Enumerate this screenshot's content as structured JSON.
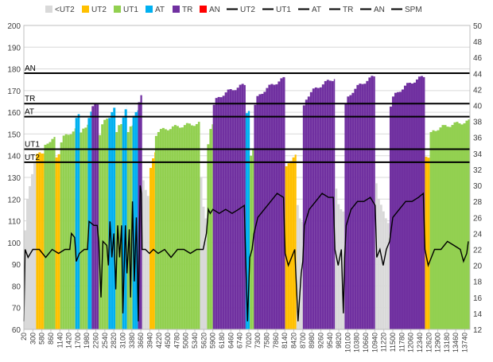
{
  "chart_data": {
    "type": "bar",
    "title": "",
    "xlabel": "",
    "ylabel": "",
    "y2label": "",
    "ylim": [
      60,
      200
    ],
    "y2lim": [
      12,
      50
    ],
    "grid": true,
    "legend_position": "top",
    "legend": [
      {
        "name": "<UT2",
        "kind": "bar",
        "color": "#d9d9d9"
      },
      {
        "name": "UT2",
        "kind": "bar",
        "color": "#ffc000"
      },
      {
        "name": "UT1",
        "kind": "bar",
        "color": "#92d050"
      },
      {
        "name": "AT",
        "kind": "bar",
        "color": "#00b0f0"
      },
      {
        "name": "TR",
        "kind": "bar",
        "color": "#7030a0"
      },
      {
        "name": "AN",
        "kind": "bar",
        "color": "#ff0000"
      },
      {
        "name": "UT2",
        "kind": "line",
        "color": "#000000"
      },
      {
        "name": "UT1",
        "kind": "line",
        "color": "#000000"
      },
      {
        "name": "AT",
        "kind": "line",
        "color": "#000000"
      },
      {
        "name": "TR",
        "kind": "line",
        "color": "#000000"
      },
      {
        "name": "AN",
        "kind": "line",
        "color": "#000000"
      },
      {
        "name": "SPM",
        "kind": "line",
        "color": "#000000"
      }
    ],
    "left_ticks": [
      60,
      70,
      80,
      90,
      100,
      110,
      120,
      130,
      140,
      150,
      160,
      170,
      180,
      190,
      200
    ],
    "right_ticks": [
      12,
      14,
      16,
      18,
      20,
      22,
      24,
      26,
      28,
      30,
      32,
      34,
      36,
      38,
      40,
      42,
      44,
      46,
      48,
      50
    ],
    "x_ticks": [
      "20",
      "300",
      "580",
      "860",
      "1140",
      "1420",
      "1700",
      "1980",
      "2260",
      "2540",
      "2820",
      "3100",
      "3380",
      "3660",
      "3940",
      "4220",
      "4500",
      "4780",
      "5060",
      "5340",
      "5620",
      "5900",
      "6180",
      "6460",
      "6740",
      "7020",
      "7300",
      "7580",
      "7860",
      "8140",
      "8420",
      "8700",
      "8980",
      "9260",
      "9540",
      "9820",
      "10100",
      "10380",
      "10660",
      "10940",
      "11220",
      "11500",
      "11780",
      "12060",
      "12340",
      "12620",
      "12900",
      "13180",
      "13460",
      "13740"
    ],
    "x_range": [
      20,
      13900
    ],
    "zone_lines": [
      {
        "name": "AN",
        "value": 178
      },
      {
        "name": "TR",
        "value": 164
      },
      {
        "name": "AT",
        "value": 158
      },
      {
        "name": "UT1",
        "value": 143
      },
      {
        "name": "UT2",
        "value": 137
      }
    ],
    "hr_segments": [
      {
        "x0": 20,
        "x1": 400,
        "zone": "<UT2",
        "y0": 105,
        "y1": 140
      },
      {
        "x0": 400,
        "x1": 650,
        "zone": "UT2",
        "y0": 140,
        "y1": 142
      },
      {
        "x0": 650,
        "x1": 1000,
        "zone": "UT1",
        "y0": 145,
        "y1": 148
      },
      {
        "x0": 1000,
        "x1": 1150,
        "zone": "UT2",
        "y0": 140,
        "y1": 142
      },
      {
        "x0": 1150,
        "x1": 1620,
        "zone": "UT1",
        "y0": 146,
        "y1": 152
      },
      {
        "x0": 1620,
        "x1": 1760,
        "zone": "AT",
        "y0": 158,
        "y1": 159
      },
      {
        "x0": 1760,
        "x1": 2010,
        "zone": "UT1",
        "y0": 150,
        "y1": 155
      },
      {
        "x0": 2010,
        "x1": 2130,
        "zone": "AT",
        "y0": 158,
        "y1": 162
      },
      {
        "x0": 2130,
        "x1": 2350,
        "zone": "TR",
        "y0": 162,
        "y1": 165
      },
      {
        "x0": 2350,
        "x1": 2650,
        "zone": "UT1",
        "y0": 150,
        "y1": 158
      },
      {
        "x0": 2650,
        "x1": 2870,
        "zone": "AT",
        "y0": 158,
        "y1": 163
      },
      {
        "x0": 2870,
        "x1": 3080,
        "zone": "UT1",
        "y0": 150,
        "y1": 156
      },
      {
        "x0": 3080,
        "x1": 3230,
        "zone": "AT",
        "y0": 158,
        "y1": 162
      },
      {
        "x0": 3230,
        "x1": 3400,
        "zone": "UT1",
        "y0": 150,
        "y1": 155
      },
      {
        "x0": 3400,
        "x1": 3570,
        "zone": "AT",
        "y0": 158,
        "y1": 162
      },
      {
        "x0": 3570,
        "x1": 3700,
        "zone": "TR",
        "y0": 165,
        "y1": 170
      },
      {
        "x0": 3700,
        "x1": 3930,
        "zone": "<UT2",
        "y0": 128,
        "y1": 120
      },
      {
        "x0": 3930,
        "x1": 4100,
        "zone": "UT2",
        "y0": 135,
        "y1": 142
      },
      {
        "x0": 4100,
        "x1": 5500,
        "zone": "UT1",
        "y0": 150,
        "y1": 155
      },
      {
        "x0": 5500,
        "x1": 5720,
        "zone": "<UT2",
        "y0": 130,
        "y1": 108
      },
      {
        "x0": 5720,
        "x1": 5900,
        "zone": "UT1",
        "y0": 145,
        "y1": 155
      },
      {
        "x0": 5900,
        "x1": 6920,
        "zone": "TR",
        "y0": 163,
        "y1": 173
      },
      {
        "x0": 6920,
        "x1": 7050,
        "zone": "AT",
        "y0": 160,
        "y1": 160
      },
      {
        "x0": 7050,
        "x1": 7180,
        "zone": "UT1",
        "y0": 140,
        "y1": 145
      },
      {
        "x0": 7180,
        "x1": 8150,
        "zone": "TR",
        "y0": 163,
        "y1": 176
      },
      {
        "x0": 8150,
        "x1": 8500,
        "zone": "UT2",
        "y0": 135,
        "y1": 140
      },
      {
        "x0": 8500,
        "x1": 8700,
        "zone": "<UT2",
        "y0": 118,
        "y1": 108
      },
      {
        "x0": 8700,
        "x1": 9700,
        "zone": "TR",
        "y0": 163,
        "y1": 176
      },
      {
        "x0": 9700,
        "x1": 10000,
        "zone": "<UT2",
        "y0": 125,
        "y1": 112
      },
      {
        "x0": 10000,
        "x1": 10950,
        "zone": "TR",
        "y0": 163,
        "y1": 177
      },
      {
        "x0": 10950,
        "x1": 11400,
        "zone": "<UT2",
        "y0": 128,
        "y1": 108
      },
      {
        "x0": 11400,
        "x1": 12500,
        "zone": "TR",
        "y0": 163,
        "y1": 177
      },
      {
        "x0": 12500,
        "x1": 12650,
        "zone": "UT2",
        "y0": 140,
        "y1": 138
      },
      {
        "x0": 12650,
        "x1": 13900,
        "zone": "UT1",
        "y0": 150,
        "y1": 156
      }
    ],
    "spm_series": [
      [
        20,
        13
      ],
      [
        60,
        22
      ],
      [
        150,
        21
      ],
      [
        300,
        22
      ],
      [
        500,
        22
      ],
      [
        700,
        21
      ],
      [
        900,
        22
      ],
      [
        1100,
        21.5
      ],
      [
        1300,
        22
      ],
      [
        1450,
        22
      ],
      [
        1500,
        24
      ],
      [
        1600,
        23.5
      ],
      [
        1650,
        20.5
      ],
      [
        1750,
        21.5
      ],
      [
        1900,
        22
      ],
      [
        2000,
        22
      ],
      [
        2050,
        25.5
      ],
      [
        2200,
        25
      ],
      [
        2300,
        25
      ],
      [
        2350,
        23
      ],
      [
        2420,
        16
      ],
      [
        2480,
        23
      ],
      [
        2600,
        22.5
      ],
      [
        2650,
        20
      ],
      [
        2700,
        25.5
      ],
      [
        2760,
        21
      ],
      [
        2820,
        24
      ],
      [
        2880,
        17
      ],
      [
        2940,
        25
      ],
      [
        3000,
        21
      ],
      [
        3060,
        25
      ],
      [
        3100,
        14
      ],
      [
        3180,
        25
      ],
      [
        3230,
        19
      ],
      [
        3300,
        24.5
      ],
      [
        3340,
        16
      ],
      [
        3400,
        28
      ],
      [
        3460,
        18
      ],
      [
        3520,
        26
      ],
      [
        3580,
        13
      ],
      [
        3640,
        30
      ],
      [
        3680,
        29
      ],
      [
        3700,
        22
      ],
      [
        3800,
        22
      ],
      [
        3930,
        21.5
      ],
      [
        4050,
        22
      ],
      [
        4200,
        21.5
      ],
      [
        4400,
        22
      ],
      [
        4600,
        21
      ],
      [
        4800,
        22
      ],
      [
        5000,
        22
      ],
      [
        5200,
        21.5
      ],
      [
        5400,
        22
      ],
      [
        5600,
        22
      ],
      [
        5700,
        24
      ],
      [
        5760,
        27
      ],
      [
        5820,
        26.5
      ],
      [
        5900,
        27
      ],
      [
        6100,
        26.5
      ],
      [
        6300,
        27
      ],
      [
        6500,
        26.5
      ],
      [
        6700,
        27
      ],
      [
        6880,
        27.5
      ],
      [
        6920,
        21
      ],
      [
        6980,
        13
      ],
      [
        7050,
        21
      ],
      [
        7120,
        22
      ],
      [
        7180,
        24
      ],
      [
        7300,
        26
      ],
      [
        7500,
        27
      ],
      [
        7700,
        28
      ],
      [
        7900,
        29
      ],
      [
        8100,
        28.5
      ],
      [
        8150,
        21.5
      ],
      [
        8250,
        20
      ],
      [
        8350,
        21
      ],
      [
        8450,
        22
      ],
      [
        8550,
        13
      ],
      [
        8650,
        19
      ],
      [
        8700,
        20.5
      ],
      [
        8750,
        25
      ],
      [
        8900,
        27
      ],
      [
        9100,
        28
      ],
      [
        9300,
        29
      ],
      [
        9500,
        28.5
      ],
      [
        9650,
        28.5
      ],
      [
        9700,
        22
      ],
      [
        9800,
        20
      ],
      [
        9900,
        22
      ],
      [
        9960,
        14
      ],
      [
        10000,
        21
      ],
      [
        10050,
        25
      ],
      [
        10200,
        27
      ],
      [
        10400,
        28
      ],
      [
        10600,
        28
      ],
      [
        10800,
        28.5
      ],
      [
        10950,
        27.5
      ],
      [
        11000,
        21
      ],
      [
        11100,
        22
      ],
      [
        11200,
        20
      ],
      [
        11300,
        22
      ],
      [
        11400,
        23
      ],
      [
        11500,
        26
      ],
      [
        11700,
        27
      ],
      [
        11900,
        28
      ],
      [
        12100,
        28
      ],
      [
        12300,
        28.5
      ],
      [
        12450,
        29
      ],
      [
        12500,
        22
      ],
      [
        12600,
        20
      ],
      [
        12700,
        21
      ],
      [
        12800,
        22
      ],
      [
        13000,
        22
      ],
      [
        13200,
        23
      ],
      [
        13400,
        22.5
      ],
      [
        13600,
        22
      ],
      [
        13700,
        20.5
      ],
      [
        13800,
        21.5
      ],
      [
        13850,
        23
      ]
    ]
  }
}
